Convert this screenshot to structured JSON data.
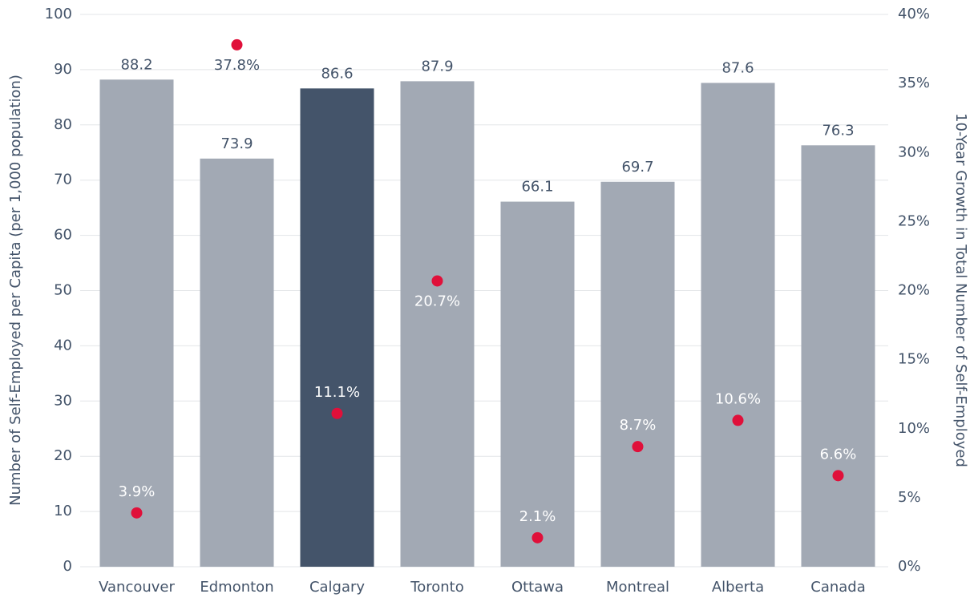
{
  "chart_data": {
    "type": "bar",
    "categories": [
      "Vancouver",
      "Edmonton",
      "Calgary",
      "Toronto",
      "Ottawa",
      "Montreal",
      "Alberta",
      "Canada"
    ],
    "series": [
      {
        "name": "Number of Self-Employed per Capita (per 1,000 population)",
        "type": "bar",
        "color": "#a2a9b4",
        "colors": [
          "#a2a9b4",
          "#a2a9b4",
          "#44546a",
          "#a2a9b4",
          "#a2a9b4",
          "#a2a9b4",
          "#a2a9b4",
          "#a2a9b4"
        ],
        "values": [
          88.2,
          73.9,
          86.6,
          87.9,
          66.1,
          69.7,
          87.6,
          76.3
        ]
      },
      {
        "name": "10-Year Growth in Total Number of Self-Employed",
        "type": "scatter",
        "axis": "y2",
        "color": "#e0103a",
        "values": [
          3.9,
          37.8,
          11.1,
          20.7,
          2.1,
          8.7,
          10.6,
          6.6
        ],
        "value_labels": [
          "3.9%",
          "37.8%",
          "11.1%",
          "20.7%",
          "2.1%",
          "8.7%",
          "10.6%",
          "6.6%"
        ]
      }
    ],
    "ylabel": "Number of Self-Employed per Capita (per 1,000 population)",
    "y2label": "10-Year Growth in Total Number of Self-Employed",
    "ylim": [
      0,
      100
    ],
    "yticks": [
      0,
      10,
      20,
      30,
      40,
      50,
      60,
      70,
      80,
      90,
      100
    ],
    "y2lim": [
      0,
      40
    ],
    "y2ticks": [
      {
        "value": 0,
        "label": "0%"
      },
      {
        "value": 5,
        "label": "5%"
      },
      {
        "value": 10,
        "label": "10%"
      },
      {
        "value": 15,
        "label": "15%"
      },
      {
        "value": 20,
        "label": "20%"
      },
      {
        "value": 25,
        "label": "25%"
      },
      {
        "value": 30,
        "label": "30%"
      },
      {
        "value": 35,
        "label": "35%"
      },
      {
        "value": 40,
        "label": "40%"
      }
    ],
    "grid": true
  }
}
